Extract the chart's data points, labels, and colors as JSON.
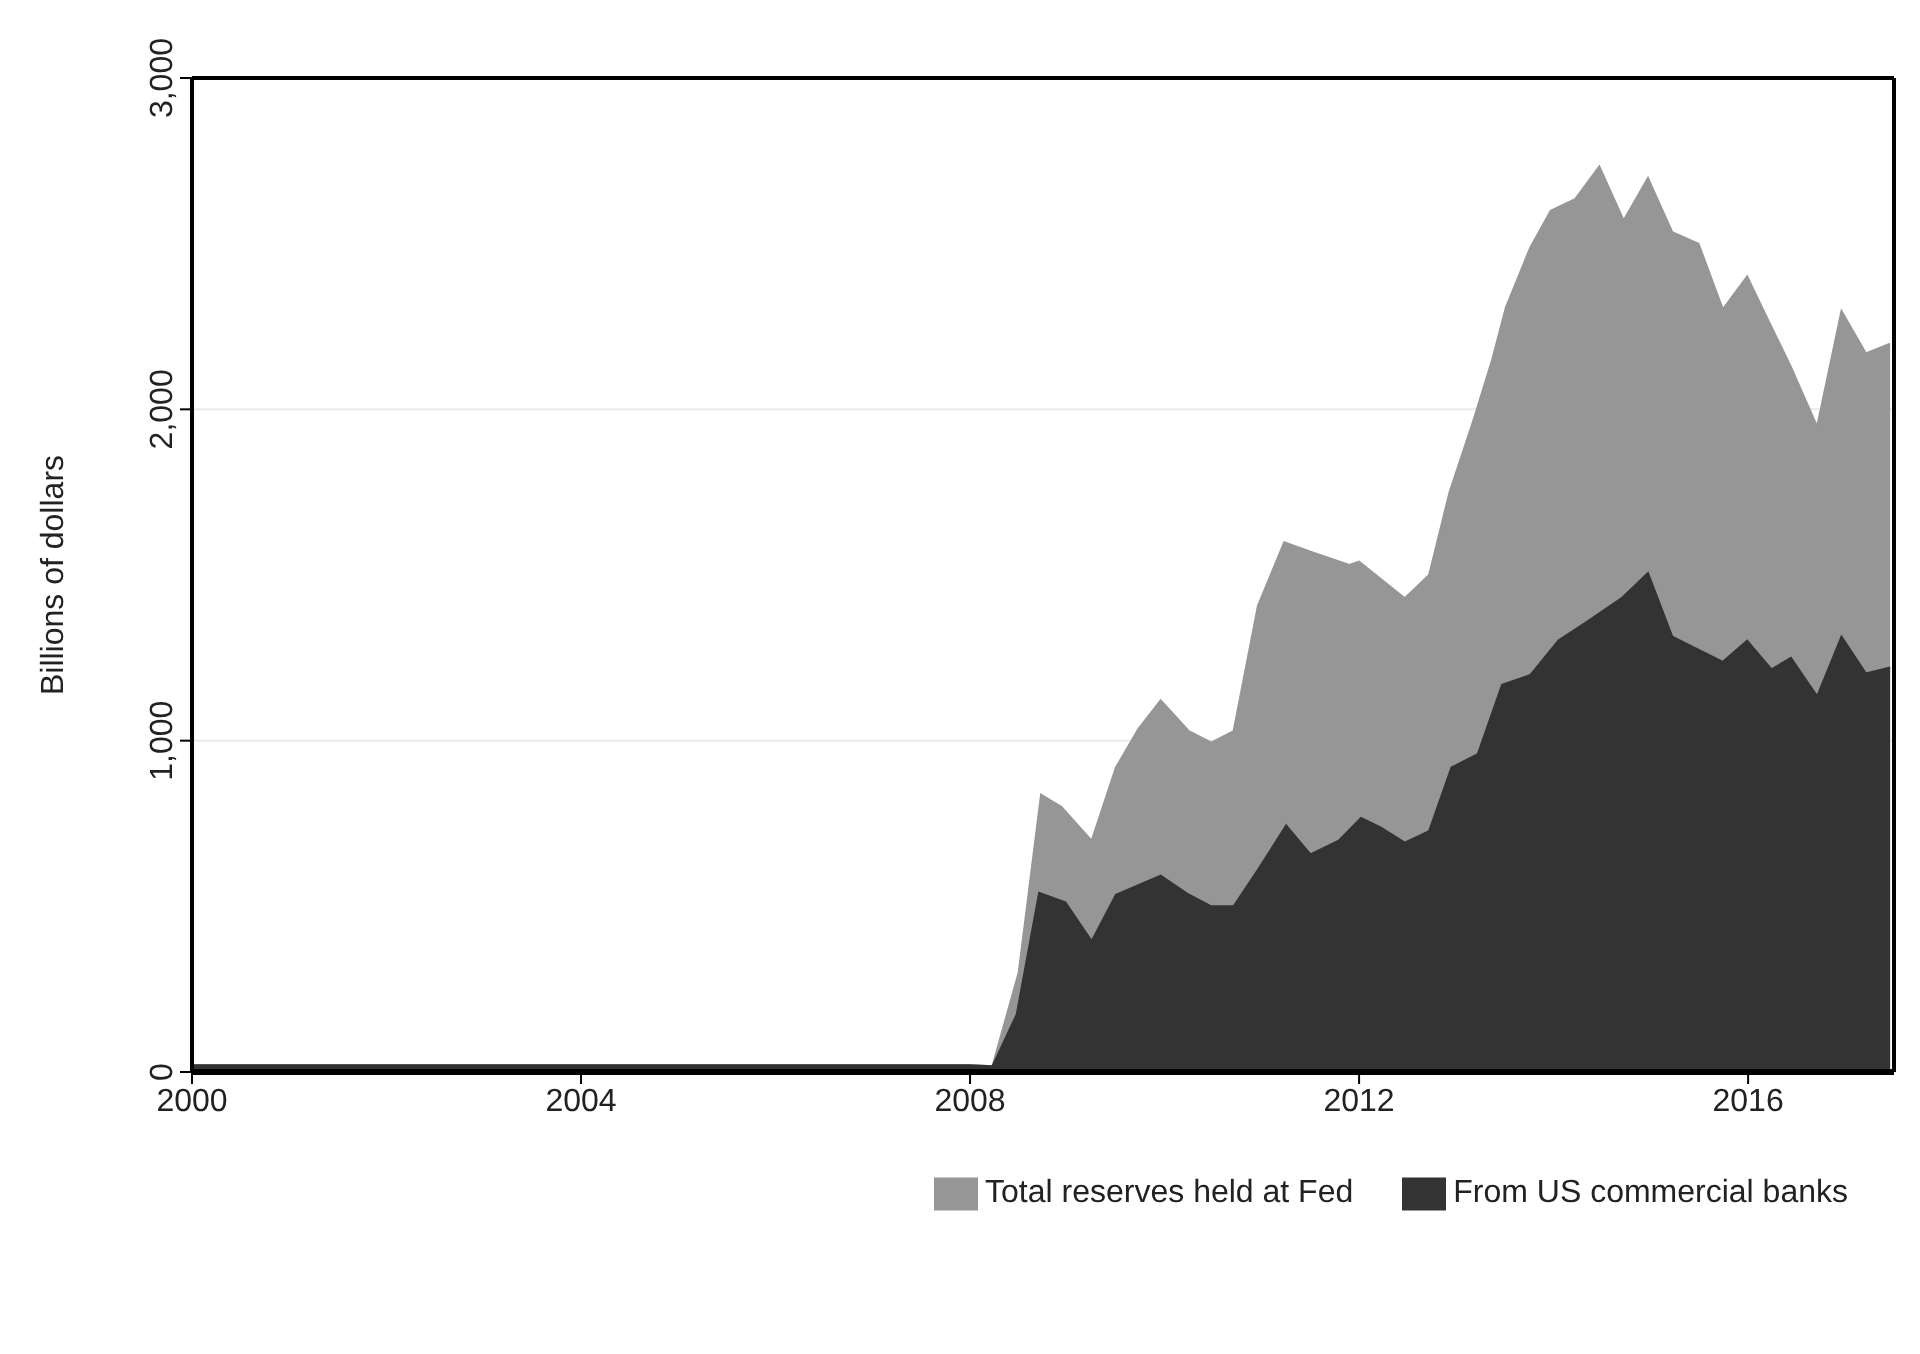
{
  "chart_data": {
    "type": "area",
    "ylabel": "Billions of dollars",
    "xlim": [
      2000,
      2017.5
    ],
    "xticks": [
      2000,
      2004,
      2008,
      2012,
      2016
    ],
    "ylim": [
      0,
      3000
    ],
    "yticks": [
      {
        "value": 0,
        "label": "0"
      },
      {
        "value": 1000,
        "label": "1,000"
      },
      {
        "value": 2000,
        "label": "2,000"
      },
      {
        "value": 3000,
        "label": "3,000"
      }
    ],
    "grid": "y",
    "legend": "bottom",
    "series": [
      {
        "name": "Total reserves held at Fed",
        "color": "#969696",
        "x": [
          2000,
          2002,
          2004,
          2006,
          2008,
          2008.23,
          2008.5,
          2008.73,
          2008.94,
          2009.25,
          2009.5,
          2009.73,
          2009.96,
          2010.25,
          2010.48,
          2010.71,
          2010.96,
          2011.23,
          2011.5,
          2011.9,
          2012.0,
          2012.47,
          2012.72,
          2012.93,
          2013.18,
          2013.37,
          2013.51,
          2013.76,
          2013.97,
          2014.22,
          2014.47,
          2014.72,
          2014.97,
          2015.22,
          2015.49,
          2015.74,
          2015.99,
          2016.2,
          2016.44,
          2016.71,
          2016.96,
          2017.21,
          2017.46
        ],
        "values": [
          20,
          20,
          20,
          20,
          20,
          17,
          300,
          837,
          800,
          698,
          919,
          1035,
          1122,
          1029,
          994,
          1029,
          1407,
          1599,
          1570,
          1530,
          1540,
          1430,
          1500,
          1750,
          1971,
          2151,
          2308,
          2488,
          2599,
          2634,
          2733,
          2570,
          2698,
          2535,
          2500,
          2302,
          2401,
          2273,
          2128,
          1948,
          2297,
          2169,
          2198
        ]
      },
      {
        "name": "From US commercial banks",
        "color": "#333333",
        "x": [
          2000,
          2002,
          2004,
          2006,
          2008,
          2008.23,
          2008.48,
          2008.71,
          2008.98,
          2009.25,
          2009.5,
          2009.96,
          2010.25,
          2010.48,
          2010.71,
          2010.96,
          2011.25,
          2011.5,
          2011.79,
          2012.02,
          2012.22,
          2012.47,
          2012.72,
          2012.95,
          2013.22,
          2013.47,
          2013.76,
          2014.05,
          2014.35,
          2014.7,
          2014.97,
          2015.22,
          2015.74,
          2015.99,
          2016.24,
          2016.44,
          2016.71,
          2016.96,
          2017.21,
          2017.46
        ],
        "values": [
          20,
          20,
          20,
          20,
          20,
          17,
          174,
          541,
          512,
          395,
          535,
          593,
          535,
          500,
          500,
          610,
          744,
          657,
          698,
          767,
          738,
          692,
          727,
          919,
          959,
          1169,
          1198,
          1302,
          1360,
          1430,
          1506,
          1314,
          1238,
          1302,
          1215,
          1250,
          1134,
          1314,
          1203,
          1221
        ]
      }
    ]
  }
}
